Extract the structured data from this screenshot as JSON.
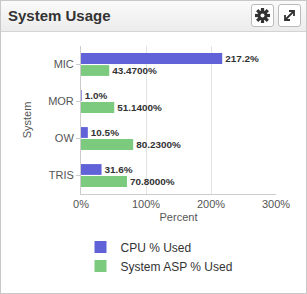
{
  "chart_data": {
    "type": "bar",
    "title": "System Usage",
    "orientation": "horizontal",
    "categories": [
      "MIC",
      "MOR",
      "OW",
      "TRIS"
    ],
    "series": [
      {
        "name": "CPU % Used",
        "color": "#6262d8",
        "values": [
          217.2,
          1.0,
          10.5,
          31.6
        ],
        "value_labels": [
          "217.2%",
          "1.0%",
          "10.5%",
          "31.6%"
        ]
      },
      {
        "name": "System ASP % Used",
        "color": "#7cca7e",
        "values": [
          43.47,
          51.14,
          80.23,
          70.8
        ],
        "value_labels": [
          "43.4700%",
          "51.1400%",
          "80.2300%",
          "70.8000%"
        ]
      }
    ],
    "xlabel": "Percent",
    "ylabel": "System",
    "xlim": [
      0,
      300
    ],
    "xticks": [
      {
        "value": 0,
        "label": "0%"
      },
      {
        "value": 100,
        "label": "100%"
      },
      {
        "value": 200,
        "label": "200%"
      },
      {
        "value": 300,
        "label": "300%"
      }
    ],
    "grid": true,
    "data_labels": true,
    "legend": "bottom"
  }
}
